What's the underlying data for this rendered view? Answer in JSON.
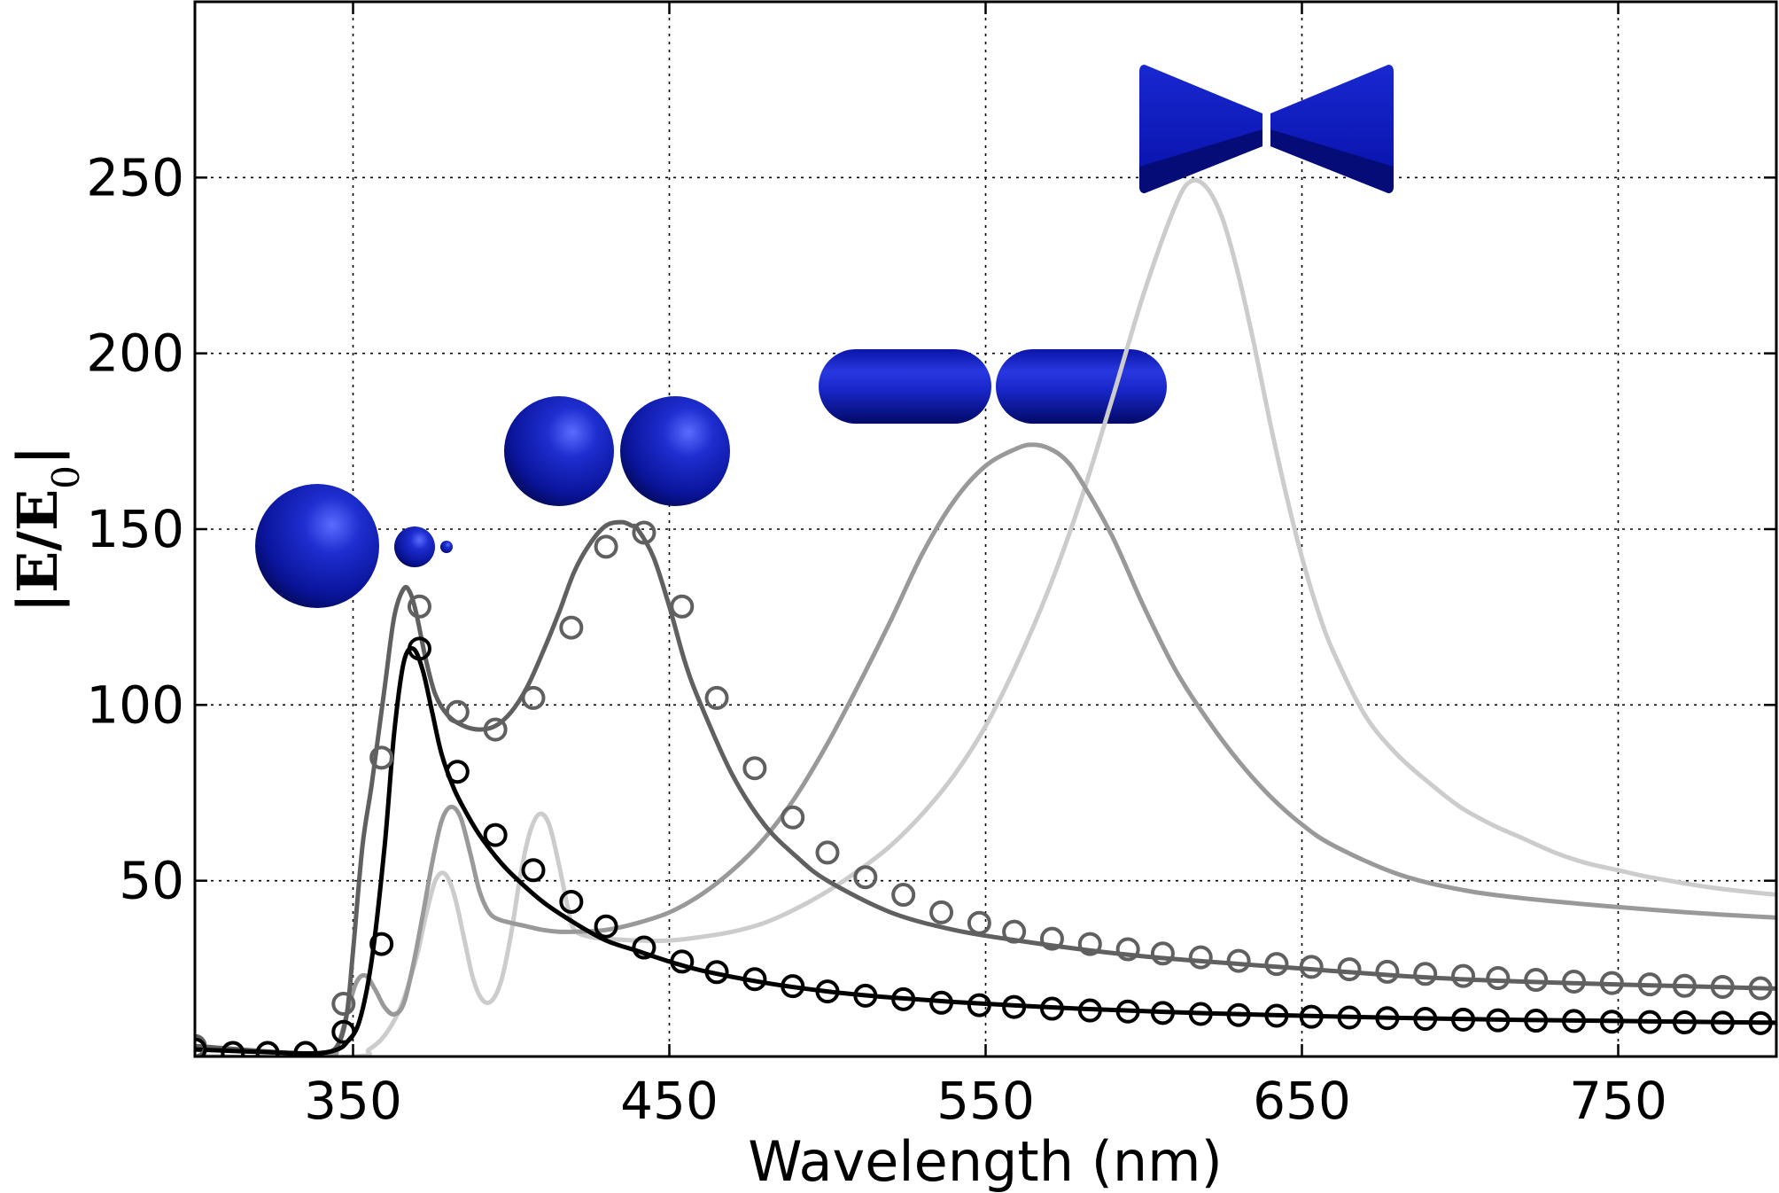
{
  "chart_data": {
    "type": "line",
    "title": "",
    "xlabel": "Wavelength (nm)",
    "ylabel": "|E/E0|",
    "ylabel_parts": {
      "E": "E",
      "slash": "/",
      "E0_base": "E",
      "E0_sub": "0"
    },
    "xlim": [
      300,
      800
    ],
    "ylim": [
      0,
      300
    ],
    "xticks": [
      350,
      450,
      550,
      650,
      750
    ],
    "xtick_labels": [
      "350",
      "450",
      "550",
      "650",
      "750"
    ],
    "yticks": [
      50,
      100,
      150,
      200,
      250
    ],
    "ytick_labels": [
      "50",
      "100",
      "150",
      "200",
      "250"
    ],
    "grid": true,
    "legend": "none",
    "series": [
      {
        "color": "#000000",
        "x": [
          300,
          330,
          340,
          345,
          348,
          352,
          356,
          360,
          363,
          366,
          369,
          372,
          375,
          378,
          382,
          386,
          390,
          395,
          400,
          410,
          420,
          430,
          440,
          450,
          460,
          480,
          500,
          520,
          540,
          560,
          580,
          600,
          620,
          650,
          680,
          700,
          720,
          750,
          780,
          800
        ],
        "y": [
          2,
          1,
          1,
          2,
          4,
          10,
          28,
          60,
          92,
          112,
          116,
          110,
          98,
          86,
          76,
          69,
          63,
          57,
          52,
          44,
          38,
          33,
          30,
          27,
          24.5,
          21,
          18.5,
          16.8,
          15.5,
          14.5,
          13.6,
          12.9,
          12.3,
          11.6,
          11.0,
          10.7,
          10.4,
          10.1,
          9.8,
          9.6
        ],
        "markers": {
          "x": [
            300,
            312,
            323,
            335,
            347,
            359,
            371,
            383,
            395,
            407,
            419,
            430,
            442,
            454,
            465,
            477,
            489,
            500,
            512,
            524,
            536,
            548,
            559,
            571,
            583,
            595,
            606,
            618,
            630,
            642,
            653,
            665,
            677,
            689,
            701,
            712,
            724,
            736,
            748,
            760,
            771,
            783,
            795
          ],
          "y": [
            2,
            1,
            1,
            1,
            7,
            32,
            116,
            81,
            63,
            53,
            44,
            37,
            31,
            27,
            24,
            22,
            20,
            18.5,
            17.3,
            16.3,
            15.3,
            14.6,
            14.1,
            13.6,
            13.1,
            12.8,
            12.4,
            12.1,
            11.8,
            11.6,
            11.3,
            11.1,
            10.9,
            10.7,
            10.5,
            10.3,
            10.2,
            10.1,
            9.9,
            9.8,
            9.7,
            9.6,
            9.5
          ]
        }
      },
      {
        "color": "#606060",
        "x": [
          300,
          330,
          340,
          345,
          348,
          350,
          353,
          356,
          360,
          363,
          366,
          368,
          370,
          373,
          376,
          380,
          385,
          390,
          395,
          400,
          405,
          410,
          415,
          420,
          425,
          430,
          435,
          438,
          440,
          445,
          450,
          455,
          460,
          470,
          480,
          490,
          500,
          520,
          540,
          560,
          580,
          600,
          620,
          650,
          680,
          700,
          720,
          750,
          780,
          800
        ],
        "y": [
          3,
          1,
          1,
          3,
          12,
          30,
          60,
          78,
          105,
          125,
          133,
          132,
          126,
          113,
          103,
          97,
          94,
          93,
          94,
          98,
          105,
          115,
          126,
          138,
          146,
          151,
          152,
          151,
          150,
          142,
          128,
          112,
          100,
          80,
          66,
          57,
          50,
          41,
          36,
          33,
          30.5,
          28.5,
          27,
          25,
          23,
          22,
          21.3,
          20.5,
          19.8,
          19.3
        ],
        "markers": {
          "x": [
            300,
            312,
            323,
            335,
            347,
            359,
            371,
            383,
            395,
            407,
            419,
            430,
            442,
            454,
            465,
            477,
            489,
            500,
            512,
            524,
            536,
            548,
            559,
            571,
            583,
            595,
            606,
            618,
            630,
            642,
            653,
            665,
            677,
            689,
            701,
            712,
            724,
            736,
            748,
            760,
            771,
            783,
            795
          ],
          "y": [
            3,
            1,
            1,
            1,
            15,
            85,
            128,
            98,
            93,
            102,
            122,
            145,
            149,
            128,
            102,
            82,
            68,
            58,
            51,
            46,
            41,
            38,
            35.5,
            33.5,
            32,
            30.5,
            29.3,
            28.2,
            27.2,
            26.3,
            25.5,
            24.8,
            24.1,
            23.5,
            22.9,
            22.3,
            21.8,
            21.3,
            20.9,
            20.5,
            20.1,
            19.8,
            19.4
          ]
        }
      },
      {
        "color": "#999999",
        "x": [
          300,
          340,
          345,
          348,
          351,
          354,
          357,
          360,
          363,
          366,
          369,
          372,
          375,
          378,
          381,
          384,
          387,
          390,
          393,
          396,
          400,
          405,
          410,
          415,
          420,
          430,
          440,
          450,
          460,
          470,
          480,
          490,
          500,
          510,
          520,
          530,
          540,
          550,
          560,
          565,
          570,
          575,
          580,
          590,
          600,
          610,
          620,
          630,
          640,
          650,
          660,
          680,
          700,
          720,
          750,
          780,
          800
        ],
        "y": [
          0,
          0,
          3,
          12,
          21,
          23,
          19,
          14,
          12,
          15,
          26,
          40,
          55,
          67,
          71,
          68,
          58,
          47,
          41,
          39,
          38,
          37,
          36,
          35.5,
          35.5,
          36,
          38,
          41,
          46,
          53,
          62,
          74,
          89,
          106,
          124,
          143,
          158,
          168,
          173,
          174,
          173,
          170,
          164,
          148,
          128,
          110,
          96,
          84,
          74,
          66,
          60,
          52,
          47.5,
          45,
          42.5,
          40.5,
          39.5
        ]
      },
      {
        "color": "#cccccc",
        "x": [
          300,
          350,
          355,
          360,
          365,
          370,
          373,
          376,
          379,
          382,
          385,
          388,
          391,
          394,
          397,
          400,
          403,
          406,
          409,
          412,
          415,
          418,
          420,
          425,
          430,
          440,
          450,
          460,
          470,
          480,
          490,
          500,
          510,
          520,
          530,
          540,
          550,
          560,
          570,
          580,
          590,
          600,
          610,
          615,
          620,
          625,
          630,
          635,
          640,
          645,
          650,
          655,
          660,
          670,
          680,
          690,
          700,
          710,
          720,
          730,
          740,
          750,
          760,
          780,
          800
        ],
        "y": [
          0,
          0,
          2,
          6,
          14,
          28,
          40,
          50,
          52,
          46,
          34,
          22,
          16,
          16,
          22,
          35,
          52,
          64,
          69,
          66,
          55,
          42,
          36,
          34,
          33.5,
          33,
          33,
          34,
          35.5,
          38,
          42,
          47,
          53,
          60,
          69,
          80,
          94,
          112,
          133,
          158,
          187,
          217,
          242,
          249,
          247,
          238,
          222,
          202,
          180,
          160,
          142,
          127,
          115,
          97,
          86,
          78,
          71,
          66,
          62,
          58,
          55,
          53,
          51,
          48,
          46
        ]
      }
    ]
  }
}
